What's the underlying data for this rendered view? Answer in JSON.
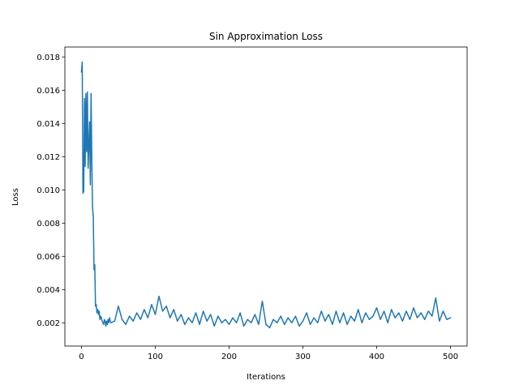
{
  "chart_data": {
    "type": "line",
    "title": "Sin Approximation Loss",
    "xlabel": "Iterations",
    "ylabel": "Loss",
    "xlim": [
      -22.5,
      522.5
    ],
    "ylim": [
      0.0006,
      0.0186
    ],
    "xticks": [
      0,
      100,
      200,
      300,
      400,
      500
    ],
    "xtick_labels": [
      "0",
      "100",
      "200",
      "300",
      "400",
      "500"
    ],
    "yticks": [
      0.002,
      0.004,
      0.006,
      0.008,
      0.01,
      0.012,
      0.014,
      0.016,
      0.018
    ],
    "ytick_labels": [
      "0.002",
      "0.004",
      "0.006",
      "0.008",
      "0.010",
      "0.012",
      "0.014",
      "0.016",
      "0.018"
    ],
    "grid": false,
    "series": [
      {
        "color": "#1f77b4",
        "x": [
          0,
          1,
          2,
          3,
          4,
          5,
          6,
          7,
          8,
          9,
          10,
          11,
          12,
          13,
          14,
          15,
          16,
          17,
          18,
          19,
          20,
          21,
          22,
          23,
          24,
          25,
          26,
          27,
          28,
          29,
          30,
          31,
          32,
          33,
          34,
          35,
          36,
          37,
          38,
          39,
          40,
          45,
          50,
          55,
          60,
          65,
          70,
          75,
          80,
          85,
          90,
          95,
          100,
          105,
          110,
          115,
          120,
          125,
          130,
          135,
          140,
          145,
          150,
          155,
          160,
          165,
          170,
          175,
          180,
          185,
          190,
          195,
          200,
          205,
          210,
          215,
          220,
          225,
          230,
          235,
          240,
          245,
          250,
          255,
          260,
          265,
          270,
          275,
          280,
          285,
          290,
          295,
          300,
          305,
          310,
          315,
          320,
          325,
          330,
          335,
          340,
          345,
          350,
          355,
          360,
          365,
          370,
          375,
          380,
          385,
          390,
          395,
          400,
          405,
          410,
          415,
          420,
          425,
          430,
          435,
          440,
          445,
          450,
          455,
          460,
          465,
          470,
          475,
          480,
          485,
          490,
          495,
          500
        ],
        "y": [
          0.0171,
          0.0177,
          0.0098,
          0.0099,
          0.0155,
          0.0114,
          0.0158,
          0.0123,
          0.0159,
          0.0113,
          0.0127,
          0.0141,
          0.0103,
          0.0158,
          0.0118,
          0.0089,
          0.0084,
          0.0052,
          0.0055,
          0.003,
          0.0031,
          0.0026,
          0.0028,
          0.0025,
          0.0027,
          0.0022,
          0.0024,
          0.0023,
          0.0021,
          0.002,
          0.0019,
          0.0022,
          0.0021,
          0.0018,
          0.0021,
          0.0019,
          0.0022,
          0.002,
          0.0023,
          0.0021,
          0.002,
          0.0021,
          0.003,
          0.0022,
          0.0019,
          0.0024,
          0.0021,
          0.0026,
          0.0022,
          0.0028,
          0.0023,
          0.0031,
          0.0025,
          0.0036,
          0.0027,
          0.003,
          0.0023,
          0.0028,
          0.0021,
          0.0025,
          0.0019,
          0.0023,
          0.002,
          0.0026,
          0.0019,
          0.0027,
          0.0021,
          0.0025,
          0.0018,
          0.0024,
          0.002,
          0.0022,
          0.0019,
          0.0023,
          0.002,
          0.0026,
          0.0018,
          0.0022,
          0.002,
          0.0025,
          0.0019,
          0.0033,
          0.0019,
          0.0017,
          0.0022,
          0.002,
          0.0024,
          0.0019,
          0.0023,
          0.002,
          0.0024,
          0.0018,
          0.0021,
          0.0026,
          0.0019,
          0.0023,
          0.002,
          0.0027,
          0.0021,
          0.0025,
          0.0019,
          0.0027,
          0.002,
          0.0026,
          0.0019,
          0.0024,
          0.0021,
          0.0028,
          0.002,
          0.0026,
          0.0022,
          0.0024,
          0.0029,
          0.0022,
          0.0027,
          0.002,
          0.0028,
          0.0023,
          0.0026,
          0.0021,
          0.0027,
          0.0022,
          0.0029,
          0.0023,
          0.0026,
          0.0022,
          0.0027,
          0.0024,
          0.0035,
          0.0021,
          0.0027,
          0.0022,
          0.0023
        ]
      }
    ]
  }
}
